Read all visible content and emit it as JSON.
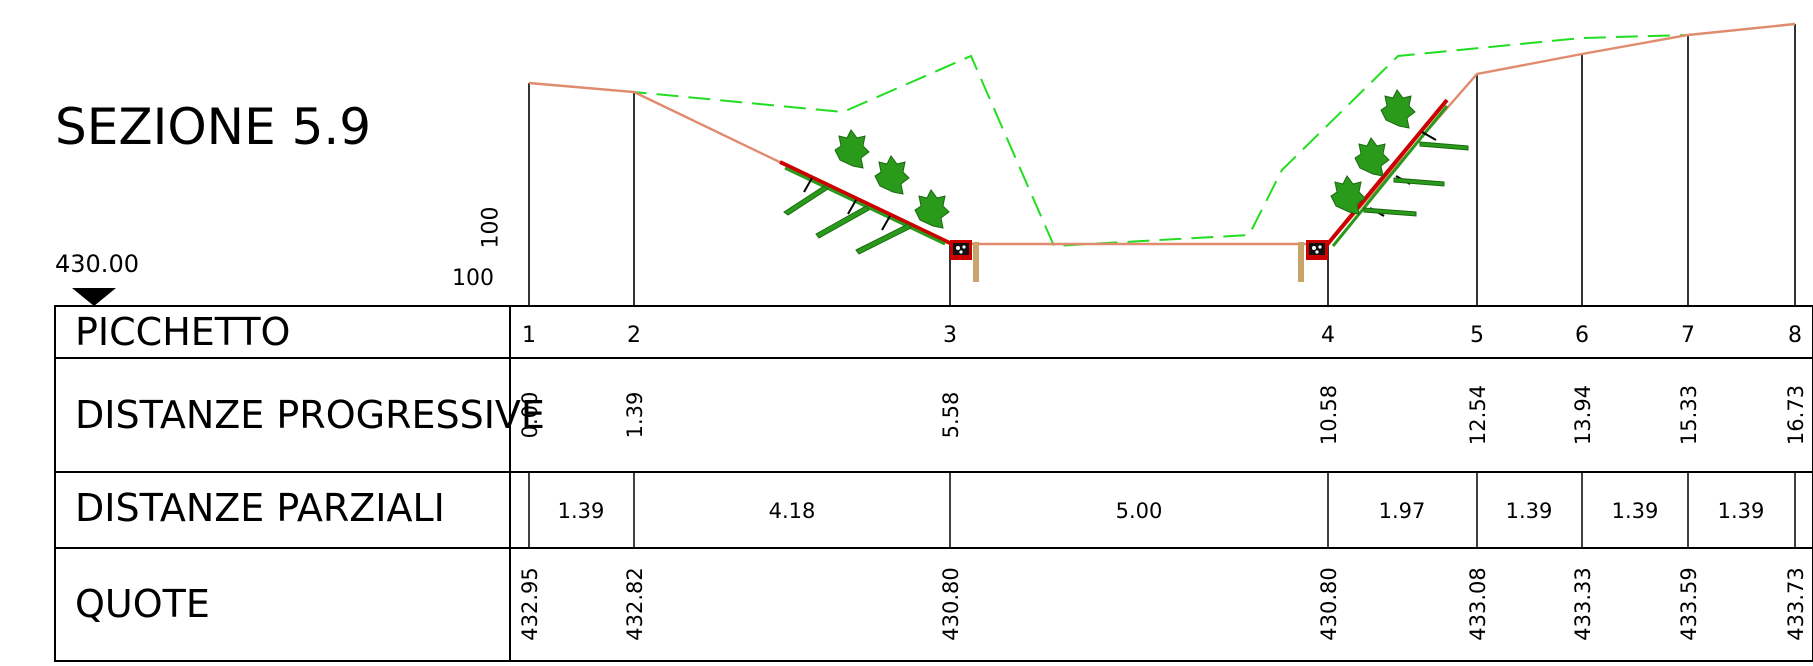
{
  "title": "SEZIONE 5.9",
  "reference_elevation": "430.00",
  "scale_vertical": "100",
  "scale_horizontal": "100",
  "rows": {
    "stakes": "PICCHETTO",
    "progressive": "DISTANZE PROGRESSIVE",
    "partial": "DISTANZE PARZIALI",
    "elevations": "QUOTE"
  },
  "stakes": [
    "1",
    "2",
    "3",
    "4",
    "5",
    "6",
    "7",
    "8"
  ],
  "progressive_distances": [
    "0.00",
    "1.39",
    "5.58",
    "10.58",
    "12.54",
    "13.94",
    "15.33",
    "16.73"
  ],
  "partial_distances": [
    "1.39",
    "4.18",
    "5.00",
    "1.97",
    "1.39",
    "1.39",
    "1.39"
  ],
  "elevations": [
    "432.95",
    "432.82",
    "430.80",
    "430.80",
    "433.08",
    "433.33",
    "433.59",
    "433.73"
  ],
  "colors": {
    "terrain_line": "#e08a6e",
    "original_ground_dashed": "#22dd22",
    "revetment": "#cc0000",
    "vegetation": "#2a9a1a",
    "stake_wood": "#c8a46a"
  }
}
